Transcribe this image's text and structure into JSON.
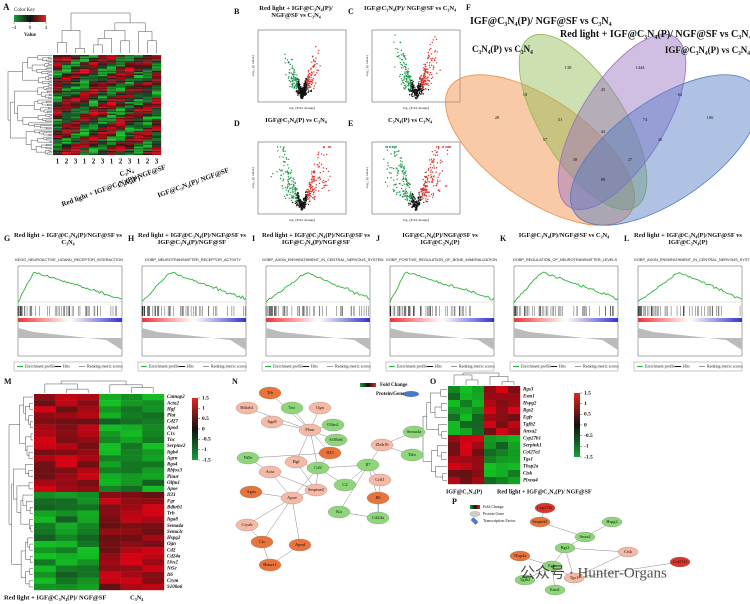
{
  "A": {
    "label": "A",
    "key_title": "Color Key",
    "key_ticks": [
      -4,
      0,
      4
    ],
    "key_axis": "Value",
    "columns": [
      "1",
      "2",
      "3",
      "1",
      "2",
      "3",
      "1",
      "2",
      "3",
      "1",
      "2",
      "3"
    ],
    "groups": [
      "C₃N₄",
      "C₃N₄(P)",
      "IGF@C₃N₄(P)/ NGF@SF",
      "Red light + IGF@C₃N₄(P)/ NGF@SF"
    ]
  },
  "volcano": {
    "xlabel": "log₂ (Fold change)",
    "ylabel": "-log₁₀ (p value)",
    "panels": [
      {
        "label": "B",
        "title": "Red light + IGF@C₃N₄(P)/ NGF@SF vs C₃N₄"
      },
      {
        "label": "C",
        "title": "IGF@C₃N₄(P)/ NGF@SF vs C₃N₄"
      },
      {
        "label": "D",
        "title": "IGF@C₃N₄(P) vs C₃N₄"
      },
      {
        "label": "E",
        "title": "C₃N₄(P) vs C₃N₄"
      }
    ]
  },
  "F": {
    "label": "F",
    "sets": [
      "IGF@C₃N₄(P)/ NGF@SF vs C₃N₄",
      "Red light + IGF@C₃N₄(P)/ NGF@SF vs C₃N₄",
      "C₃N₄(P) vs C₃N₄",
      "IGF@C₃N₄(P) vs C₃N₄"
    ],
    "counts": [
      28,
      138,
      1444,
      106,
      18,
      45,
      62,
      31,
      74,
      43,
      38,
      27,
      57,
      36,
      89
    ]
  },
  "gsea": {
    "legend": [
      "Enrichment profile",
      "Hits",
      "Ranking metric scores"
    ],
    "panels": [
      {
        "label": "G",
        "title": "Red light + IGF@C₃N₄(P)/NGF@SF vs C₃N₄",
        "gene_set": "KEGG_NEUROACTIVE_LIGAND_RECEPTOR_INTERACTION"
      },
      {
        "label": "H",
        "title": "Red light + IGF@C₃N₄(P)/NGF@SF vs IGF@C₃N₄(P)/NGF@SF",
        "gene_set": "GOBP_NEUROTRANSMITTER_RECEPTOR_ACTIVITY"
      },
      {
        "label": "I",
        "title": "Red light + IGF@C₃N₄(P)/NGF@SF vs IGF@C₃N₄(P)/NGF@SF",
        "gene_set": "GOBP_AXON_ENSHEATHMENT_IN_CENTRAL_NERVOUS_SYSTEM"
      },
      {
        "label": "J",
        "title": "IGF@C₃N₄(P)/NGF@SF vs IGF@C₃N₄(P)",
        "gene_set": "GOBP_POSITIVE_REGULATION_OF_BONE_MINERALIZATION"
      },
      {
        "label": "K",
        "title": "IGF@C₃N₄(P)/NGF@SF vs C₃N₄",
        "gene_set": "GOBP_REGULATION_OF_NEUROTRANSMITTER_LEVELS"
      },
      {
        "label": "L",
        "title": "Red light + IGF@C₃N₄(P)/NGF@SF vs IGF@C₃N₄(P)",
        "gene_set": "GOBP_AXON_ENSHEATHMENT_IN_CENTRAL_NERVOUS_SYSTEM"
      }
    ]
  },
  "M": {
    "label": "M",
    "key_ticks": [
      1.5,
      1,
      0.5,
      0,
      -0.5,
      -1,
      -1.5
    ],
    "genes": [
      "Cntnap2",
      "Acta2",
      "Hgf",
      "Plat",
      "Cd27",
      "Apod",
      "C1s",
      "Tnc",
      "Serpine2",
      "Itgb4",
      "Agrn",
      "Rgs4",
      "Rbfox3",
      "Plaur",
      "Olfm1",
      "Apoe",
      "Il33",
      "Fgr",
      "Bdkrb1",
      "Trh",
      "Itga8",
      "Sema4a",
      "Sema3c",
      "Hspg2",
      "Ogn",
      "Cd2",
      "Cd24a",
      "Lhx2",
      "Nt5e",
      "Il6",
      "Crym",
      "S100a6"
    ],
    "groups": [
      "Red light + IGF@C₃N₄(P)/ NGF@SF",
      "C₃N₄"
    ]
  },
  "N": {
    "label": "N",
    "legend": [
      "Fold Change",
      "Protein/Gene"
    ],
    "nodes": [
      "Trh",
      "Bdkrb1",
      "Tnc",
      "Ogn",
      "Itga8",
      "Plaur",
      "Olfm1",
      "S100a6",
      "Nt5e",
      "Il33",
      "Sema4a",
      "Zbtb16",
      "Tshr",
      "Hgf",
      "Cd2",
      "Acta",
      "Il7",
      "Serpine2",
      "Apoe",
      "Agrn",
      "Cryab",
      "Cts",
      "Apod",
      "Hmox1",
      "C2",
      "Kit",
      "Cd24a",
      "Il6",
      "Crlf1"
    ]
  },
  "O": {
    "label": "O",
    "key_ticks": [
      1.5,
      1,
      0.5,
      0,
      -0.5,
      -1,
      -1.5
    ],
    "genes": [
      "Rgs3",
      "Esm1",
      "Hspg2",
      "Rgs2",
      "Egfr",
      "Tgfb2",
      "Anxa2",
      "Cyp27b1",
      "Serpink1",
      "Col27a1",
      "Tgs1",
      "Thsp2a",
      "Ctsk",
      "Plxna4"
    ],
    "groups": [
      "IGF@C₃N₄(P)",
      "Red light + IGF@C₃N₄(P)/ NGF@SF"
    ]
  },
  "P": {
    "label": "P",
    "legend": [
      "Fold Change",
      "Protein Gene",
      "Transcription Factor"
    ],
    "nodes": [
      "Cyp27b1",
      "Serpink1",
      "Hspg2",
      "Anxa2",
      "Rgs3",
      "Ctsk",
      "Thsp2a",
      "Egfr",
      "Tgs1",
      "Tgfb2",
      "Esm1",
      "Col27a1"
    ]
  },
  "watermark": "公众号 · Hunter-Organs"
}
